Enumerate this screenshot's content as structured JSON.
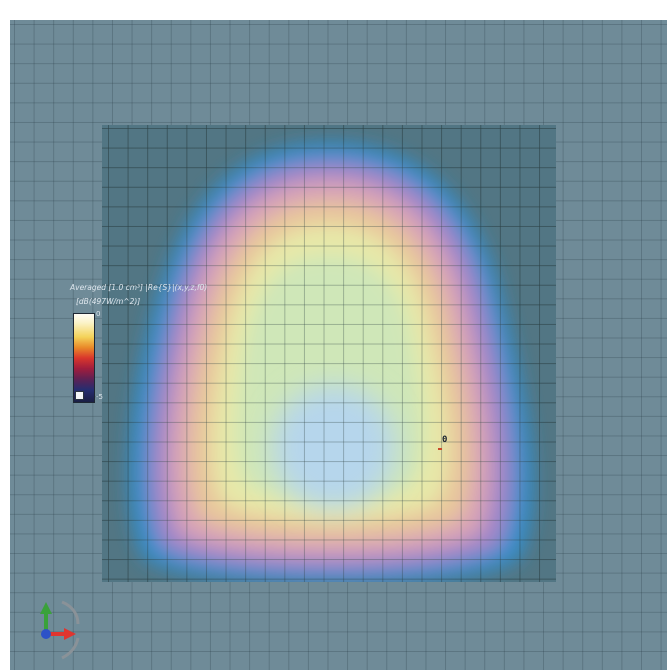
{
  "legend": {
    "title": "Averaged [1.0 cm³] |Re{S}|(x,y,z,f0)",
    "unit": "[dB(497W/m^2)]",
    "max_label": "0",
    "min_label": "-5",
    "colors": [
      "#fffdf6",
      "#f4d35a",
      "#e98a2a",
      "#d9362c",
      "#a01d3d",
      "#5e2154",
      "#262d70",
      "#1b1f44"
    ]
  },
  "probe": {
    "label": "0"
  },
  "axes": {
    "x_color": "#e0352f",
    "y_color": "#3aa23a",
    "z_color": "#2d52c8"
  },
  "field_colors": {
    "outer": "#2f8fd0",
    "band_purple": "#9f85c9",
    "band_pink": "#d8a3b6",
    "band_peach": "#e8c69b",
    "band_yellow": "#e7e8a8",
    "core_green": "#cfe7b8",
    "peak_blue": "#b6d6ec"
  }
}
